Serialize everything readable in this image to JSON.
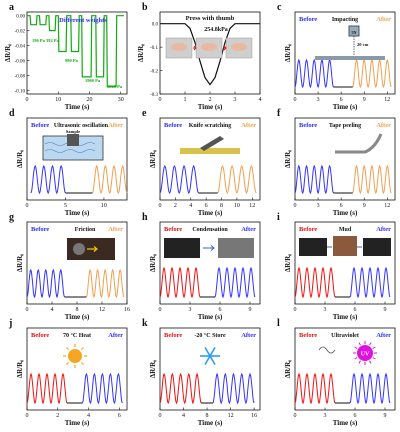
{
  "colors": {
    "blue": "#3333ff",
    "orange": "#f0a050",
    "red": "#ee1111",
    "green": "#11aa11",
    "black": "#111111",
    "label_blue": "#2a2aff",
    "label_red": "#e01010",
    "sun": "#f5a623",
    "uv": "#e010e0",
    "snow": "#2a9df4"
  },
  "chart_data": [
    {
      "id": "a",
      "type": "line",
      "panel_label": "a",
      "title": "Different weights",
      "xlabel": "Time (s)",
      "ylabel": "ΔR/R₀",
      "xlim": [
        0,
        32
      ],
      "ylim": [
        -0.105,
        0.005
      ],
      "xticks": [
        "0",
        "10",
        "20",
        "30"
      ],
      "yticks": [
        "0.00",
        "-0.02",
        "-0.04",
        "-0.06",
        "-0.08",
        "-0.10"
      ],
      "annotations": [
        "196 Pa",
        "392 Pa",
        "980 Pa",
        "1960 Pa",
        "3920 Pa"
      ],
      "series": [
        {
          "color": "green",
          "x": [
            0,
            1,
            1.2,
            3,
            3.2,
            4,
            4.2,
            6,
            6.2,
            7,
            7.2,
            9,
            9.2,
            10,
            10.2,
            12.5,
            12.7,
            14,
            14.2,
            16.5,
            16.7,
            17.5,
            17.7,
            20.5,
            20.7,
            22,
            22.2,
            24.5,
            24.7,
            25.5,
            25.7,
            28.5,
            28.7,
            31
          ],
          "y": [
            0,
            0,
            -0.012,
            -0.012,
            0,
            0,
            -0.012,
            -0.012,
            0,
            0,
            -0.02,
            -0.02,
            0,
            0,
            -0.048,
            -0.048,
            0,
            0,
            -0.048,
            -0.048,
            0,
            0,
            -0.082,
            -0.082,
            0,
            0,
            -0.082,
            -0.082,
            0,
            0,
            -0.095,
            -0.095,
            0,
            0
          ]
        }
      ]
    },
    {
      "id": "b",
      "type": "line",
      "panel_label": "b",
      "title": "Press with thumb",
      "xlabel": "Time (s)",
      "ylabel": "ΔR/R₀",
      "xlim": [
        0,
        4
      ],
      "ylim": [
        -0.3,
        0.05
      ],
      "xticks": [
        "0",
        "1",
        "2",
        "3",
        "4"
      ],
      "yticks": [
        "0.0",
        "-0.1",
        "-0.2",
        "-0.3"
      ],
      "annotations": [
        "254.8kPa"
      ],
      "series": [
        {
          "color": "black",
          "x": [
            0,
            1,
            1.2,
            1.4,
            1.6,
            1.8,
            2,
            2.2,
            2.4,
            2.6,
            2.8,
            3,
            4
          ],
          "y": [
            0,
            0,
            -0.02,
            -0.08,
            -0.16,
            -0.23,
            -0.26,
            -0.23,
            -0.16,
            -0.08,
            -0.02,
            0,
            0
          ]
        }
      ]
    },
    {
      "id": "c",
      "type": "line",
      "panel_label": "c",
      "legend": [
        "Before",
        "After"
      ],
      "title": "Impacting",
      "xlabel": "Time (s)",
      "ylabel": "ΔR/R₀",
      "xlim": [
        0,
        13
      ],
      "xticks": [
        "0",
        "3",
        "6",
        "9",
        "12"
      ],
      "annotations": [
        "20 cm",
        "5N"
      ],
      "series": [
        {
          "name": "Before",
          "color": "blue",
          "x_start": 0,
          "x_end": 5,
          "cycles": 5
        },
        {
          "name": "After",
          "color": "orange",
          "x_start": 7.5,
          "x_end": 12.5,
          "cycles": 5
        }
      ]
    },
    {
      "id": "d",
      "type": "line",
      "panel_label": "d",
      "legend": [
        "Before",
        "After"
      ],
      "title": "Ultrasonic oscillation",
      "xlabel": "Time (s)",
      "ylabel": "ΔR/R₀",
      "xlim": [
        0,
        13
      ],
      "xticks": [
        "0",
        "5",
        "10"
      ],
      "annotations": [
        "Sample"
      ],
      "series": [
        {
          "name": "Before",
          "color": "blue",
          "x_start": 0.5,
          "x_end": 5,
          "cycles": 4
        },
        {
          "name": "After",
          "color": "orange",
          "x_start": 8.5,
          "x_end": 13,
          "cycles": 4
        }
      ]
    },
    {
      "id": "e",
      "type": "line",
      "panel_label": "e",
      "legend": [
        "Before",
        "After"
      ],
      "title": "Knife scratching",
      "xlabel": "Time (s)",
      "ylabel": "ΔR/R₀",
      "xlim": [
        0,
        13
      ],
      "xticks": [
        "0",
        "2",
        "4",
        "6",
        "8",
        "10",
        "12"
      ],
      "series": [
        {
          "name": "Before",
          "color": "blue",
          "x_start": 0,
          "x_end": 5,
          "cycles": 4
        },
        {
          "name": "After",
          "color": "orange",
          "x_start": 7.5,
          "x_end": 12.5,
          "cycles": 4
        }
      ]
    },
    {
      "id": "f",
      "type": "line",
      "panel_label": "f",
      "legend": [
        "Before",
        "After"
      ],
      "title": "Tape peeling",
      "xlabel": "Time (s)",
      "ylabel": "ΔR/R₀",
      "xlim": [
        0,
        13
      ],
      "xticks": [
        "0",
        "3",
        "6",
        "9",
        "12"
      ],
      "series": [
        {
          "name": "Before",
          "color": "blue",
          "x_start": 0,
          "x_end": 5,
          "cycles": 5
        },
        {
          "name": "After",
          "color": "orange",
          "x_start": 7.5,
          "x_end": 12.5,
          "cycles": 5
        }
      ]
    },
    {
      "id": "g",
      "type": "line",
      "panel_label": "g",
      "legend": [
        "Before",
        "After"
      ],
      "title": "Friction",
      "xlabel": "Time (s)",
      "ylabel": "ΔR/R₀",
      "xlim": [
        0,
        16
      ],
      "xticks": [
        "0",
        "4",
        "8",
        "12",
        "16"
      ],
      "series": [
        {
          "name": "Before",
          "color": "blue",
          "x_start": 0,
          "x_end": 6,
          "cycles": 5
        },
        {
          "name": "After",
          "color": "orange",
          "x_start": 9.5,
          "x_end": 15.5,
          "cycles": 5
        }
      ]
    },
    {
      "id": "h",
      "type": "line",
      "panel_label": "h",
      "legend": [
        "Before",
        "After"
      ],
      "title": "Condensation",
      "xlabel": "Time (s)",
      "ylabel": "ΔR/R₀",
      "xlim": [
        0,
        10
      ],
      "xticks": [
        "0",
        "3",
        "6",
        "9"
      ],
      "series": [
        {
          "name": "Before",
          "color": "red",
          "x_start": 0,
          "x_end": 4,
          "cycles": 5
        },
        {
          "name": "After",
          "color": "blue",
          "x_start": 5.5,
          "x_end": 9.5,
          "cycles": 5
        }
      ]
    },
    {
      "id": "i",
      "type": "line",
      "panel_label": "i",
      "legend": [
        "Before",
        "After"
      ],
      "title": "Mud",
      "xlabel": "Time (s)",
      "ylabel": "ΔR/R₀",
      "xlim": [
        0,
        10
      ],
      "xticks": [
        "0",
        "3",
        "6",
        "9"
      ],
      "series": [
        {
          "name": "Before",
          "color": "red",
          "x_start": 0,
          "x_end": 4,
          "cycles": 5
        },
        {
          "name": "After",
          "color": "blue",
          "x_start": 5.5,
          "x_end": 9.5,
          "cycles": 5
        }
      ]
    },
    {
      "id": "j",
      "type": "line",
      "panel_label": "j",
      "legend": [
        "Before",
        "After"
      ],
      "title": "70 °C Heat",
      "xlabel": "Time (s)",
      "ylabel": "ΔR/R₀",
      "xlim": [
        0,
        6.5
      ],
      "xticks": [
        "0",
        "2",
        "4",
        "6"
      ],
      "series": [
        {
          "name": "Before",
          "color": "red",
          "x_start": 0,
          "x_end": 2.6,
          "cycles": 5
        },
        {
          "name": "After",
          "color": "blue",
          "x_start": 3.6,
          "x_end": 6.2,
          "cycles": 5
        }
      ]
    },
    {
      "id": "k",
      "type": "line",
      "panel_label": "k",
      "legend": [
        "Before",
        "After"
      ],
      "title": "-20 °C Store",
      "xlabel": "Time (s)",
      "ylabel": "ΔR/R₀",
      "xlim": [
        0,
        17
      ],
      "xticks": [
        "0",
        "4",
        "8",
        "12",
        "16"
      ],
      "series": [
        {
          "name": "Before",
          "color": "red",
          "x_start": 0,
          "x_end": 7,
          "cycles": 5
        },
        {
          "name": "After",
          "color": "blue",
          "x_start": 9,
          "x_end": 16,
          "cycles": 5
        }
      ]
    },
    {
      "id": "l",
      "type": "line",
      "panel_label": "l",
      "legend": [
        "Before",
        "After"
      ],
      "title": "Ultraviolet",
      "xlabel": "Time (s)",
      "ylabel": "ΔR/R₀",
      "xlim": [
        0,
        10
      ],
      "xticks": [
        "0",
        "3",
        "6",
        "9"
      ],
      "series": [
        {
          "name": "Before",
          "color": "red",
          "x_start": 0,
          "x_end": 4,
          "cycles": 5
        },
        {
          "name": "After",
          "color": "blue",
          "x_start": 5.5,
          "x_end": 9.5,
          "cycles": 5
        }
      ]
    }
  ]
}
